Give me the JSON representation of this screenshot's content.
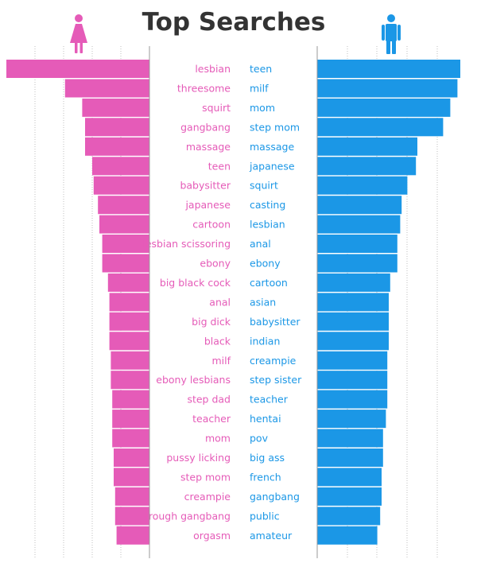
{
  "chart_data": {
    "type": "bar",
    "title": "Top Searches",
    "colors": {
      "female": "#e55bb8",
      "male": "#1b97e6",
      "grid": "#bfbfbf",
      "axis": "#999999"
    },
    "icons": {
      "female": "female-figure-icon",
      "male": "male-figure-icon"
    },
    "grid": true,
    "series": [
      {
        "side": "left",
        "icon": "female-figure-icon",
        "categories": [
          "lesbian",
          "threesome",
          "squirt",
          "gangbang",
          "massage",
          "teen",
          "babysitter",
          "japanese",
          "cartoon",
          "lesbian scissoring",
          "ebony",
          "big black cock",
          "anal",
          "big dick",
          "black",
          "milf",
          "ebony lesbians",
          "step dad",
          "teacher",
          "mom",
          "pussy licking",
          "step mom",
          "creampie",
          "rough gangbang",
          "orgasm"
        ],
        "values": [
          100,
          59,
          47,
          45,
          45,
          40,
          39,
          36,
          35,
          33,
          33,
          29,
          28,
          28,
          28,
          27,
          27,
          26,
          26,
          26,
          25,
          25,
          24,
          24,
          23
        ]
      },
      {
        "side": "right",
        "icon": "male-figure-icon",
        "categories": [
          "teen",
          "milf",
          "mom",
          "step mom",
          "massage",
          "japanese",
          "squirt",
          "casting",
          "lesbian",
          "anal",
          "ebony",
          "cartoon",
          "asian",
          "babysitter",
          "indian",
          "creampie",
          "step sister",
          "teacher",
          "hentai",
          "pov",
          "big ass",
          "french",
          "gangbang",
          "public",
          "amateur"
        ],
        "values": [
          100,
          98,
          93,
          88,
          70,
          69,
          63,
          59,
          58,
          56,
          56,
          51,
          50,
          50,
          50,
          49,
          49,
          49,
          48,
          46,
          46,
          45,
          45,
          44,
          42
        ]
      }
    ]
  }
}
